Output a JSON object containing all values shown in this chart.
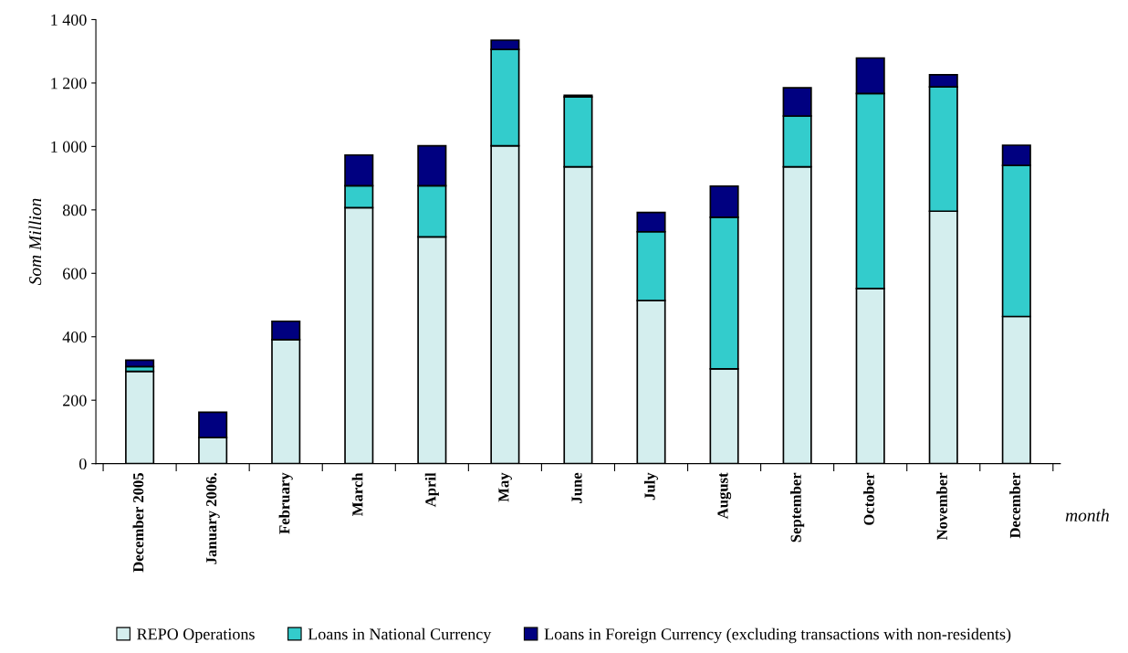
{
  "chart_data": {
    "type": "bar",
    "stacked": true,
    "ylabel": "Som Million",
    "xlabel": "month",
    "categories": [
      "December 2005",
      "January 2006.",
      "February",
      "March",
      "April",
      "May",
      "June",
      "July",
      "August",
      "September",
      "October",
      "November",
      "December"
    ],
    "series": [
      {
        "name": "REPO Operations",
        "color": "#d4eeee",
        "values": [
          291,
          82,
          391,
          807,
          715,
          1002,
          936,
          514,
          299,
          936,
          552,
          796,
          464
        ]
      },
      {
        "name": "Loans in National Currency",
        "color": "#33cccc",
        "values": [
          15,
          null,
          null,
          69,
          161,
          304,
          220,
          217,
          478,
          160,
          615,
          392,
          476
        ]
      },
      {
        "name": "Loans in Foreign Currency (excluding transactions with non-residents)",
        "color": "#000080",
        "values": [
          20,
          80,
          58,
          97,
          126,
          29,
          5,
          61,
          98,
          89,
          112,
          38,
          64
        ]
      }
    ],
    "ylim": [
      0,
      1400
    ],
    "yticks": [
      0,
      {
        "value": 200,
        "label": "200"
      },
      {
        "value": 400,
        "label": "400"
      },
      {
        "value": 600,
        "label": "600"
      },
      {
        "value": 800,
        "label": "800"
      },
      {
        "value": 1000,
        "label": "1 000"
      },
      {
        "value": 1200,
        "label": "1 200"
      },
      {
        "value": 1400,
        "label": "1 400"
      }
    ],
    "grid": false,
    "legend": "bottom"
  }
}
